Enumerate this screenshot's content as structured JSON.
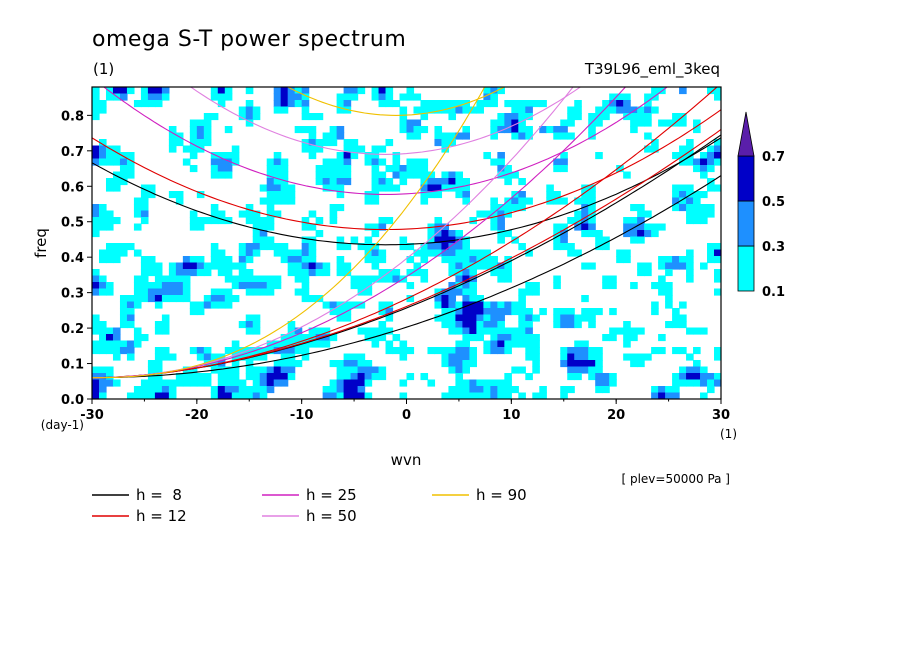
{
  "chart_data": {
    "type": "heatmap",
    "title": "omega S-T power spectrum",
    "subtitle_left": "(1)",
    "subtitle_right": "T39L96_eml_3keq",
    "xlabel": "wvn",
    "ylabel": "freq",
    "x_unit": "(1)",
    "y_unit": "(day-1)",
    "annotation": "[ plev=50000 Pa ]",
    "xlim": [
      -30,
      30
    ],
    "ylim": [
      0,
      0.88
    ],
    "x_ticks": [
      "-30",
      "-20",
      "-10",
      "0",
      "10",
      "20",
      "30"
    ],
    "y_ticks": [
      "0.0",
      "0.1",
      "0.2",
      "0.3",
      "0.4",
      "0.5",
      "0.6",
      "0.7",
      "0.8"
    ],
    "colorbar": {
      "levels": [
        "0.1",
        "0.3",
        "0.5",
        "0.7"
      ],
      "colors": [
        "#00ffff",
        "#1e90ff",
        "#0000c8",
        "#5a1eaa"
      ]
    },
    "contour_fill_threshold": 0.1,
    "dispersion_curves": [
      {
        "label": "h =  8",
        "color": "#000000"
      },
      {
        "label": "h = 12",
        "color": "#e00000"
      },
      {
        "label": "h = 25",
        "color": "#d020c0"
      },
      {
        "label": "h = 50",
        "color": "#e080e0"
      },
      {
        "label": "h = 90",
        "color": "#f0c000"
      }
    ]
  }
}
